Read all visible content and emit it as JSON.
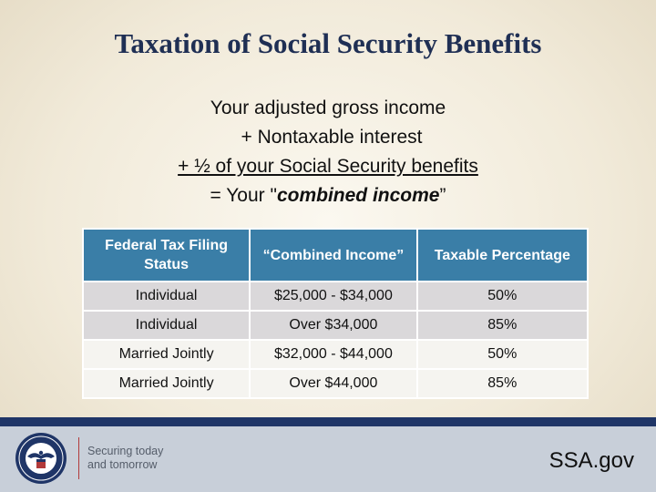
{
  "title": "Taxation of Social Security Benefits",
  "formula": {
    "line1": "Your adjusted gross income",
    "line2": "+ Nontaxable interest",
    "line3": "+ ½ of your Social Security benefits",
    "line4_prefix": "= Your \"",
    "line4_emphasis": "combined income",
    "line4_suffix": "”"
  },
  "table": {
    "headers": [
      "Federal Tax Filing Status",
      "“Combined Income”",
      "Taxable Percentage"
    ],
    "rows": [
      [
        "Individual",
        "$25,000 - $34,000",
        "50%"
      ],
      [
        "Individual",
        "Over $34,000",
        "85%"
      ],
      [
        "Married Jointly",
        "$32,000 - $44,000",
        "50%"
      ],
      [
        "Married Jointly",
        "Over $44,000",
        "85%"
      ]
    ]
  },
  "footer": {
    "tagline_line1": "Securing today",
    "tagline_line2": "and tomorrow",
    "site": "SSA.gov"
  },
  "colors": {
    "title": "#1f2f54",
    "header_bg": "#3a7ea7",
    "footer_bar": "#1f3567",
    "footer_bg": "#c8cfd9"
  },
  "icons": {
    "logo": "ssa-seal-icon"
  }
}
